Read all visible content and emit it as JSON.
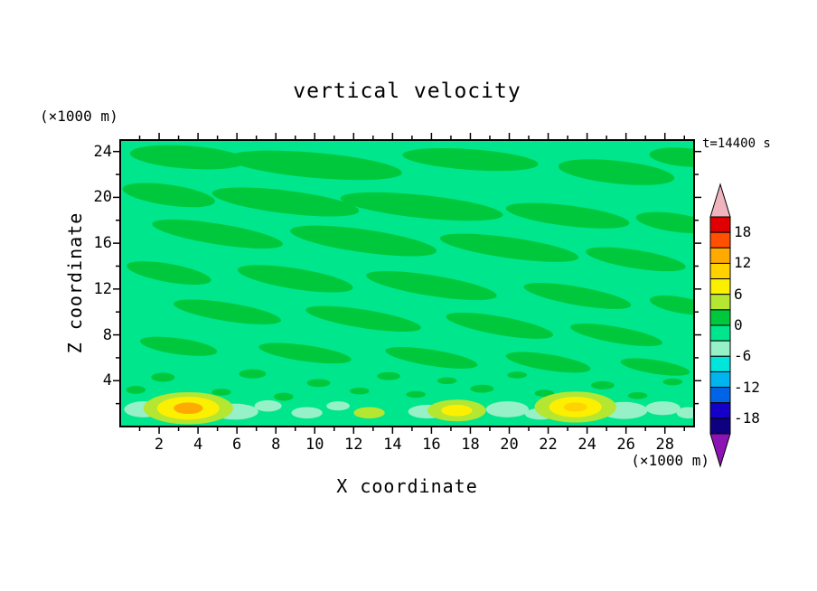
{
  "chart_data": {
    "type": "contour",
    "title": "vertical velocity",
    "timestamp": "t=14400 s",
    "x_axis": {
      "label": "X coordinate",
      "unit": "(×1000 m)",
      "range": [
        0,
        29.5
      ],
      "ticks": [
        2,
        4,
        6,
        8,
        10,
        12,
        14,
        16,
        18,
        20,
        22,
        24,
        26,
        28
      ],
      "minor_ticks": [
        1,
        3,
        5,
        7,
        9,
        11,
        13,
        15,
        17,
        19,
        21,
        23,
        25,
        27,
        29
      ]
    },
    "y_axis": {
      "label": "Z coordinate",
      "unit": "(×1000 m)",
      "range": [
        0,
        25
      ],
      "ticks": [
        4,
        8,
        12,
        16,
        20,
        24
      ],
      "minor_ticks": [
        2,
        6,
        10,
        14,
        18,
        22
      ]
    },
    "contour_interval": 3,
    "levels": [
      -21,
      -18,
      -15,
      -12,
      -9,
      -6,
      -3,
      0,
      3,
      6,
      9,
      12,
      15,
      18,
      21
    ],
    "colors_low_to_high": [
      "#8c14b4",
      "#0f0082",
      "#1400c8",
      "#0064e6",
      "#00b4f0",
      "#00e6dc",
      "#96f0c8",
      "#00e68c",
      "#00c83c",
      "#b4e632",
      "#faf000",
      "#ffd200",
      "#ffaa00",
      "#ff5000",
      "#e10000",
      "#f0b4be"
    ],
    "colorbar_labels": [
      "18",
      "12",
      "6",
      "0",
      "-6",
      "-12",
      "-18"
    ],
    "field": {
      "background_value": -1,
      "streak_value": 1.5,
      "cool_value": -4.5,
      "streaks": [
        {
          "x": 3.5,
          "z": 23.5,
          "rx": 3.0,
          "rz": 1.0,
          "rot": 4
        },
        {
          "x": 10,
          "z": 22.8,
          "rx": 4.5,
          "rz": 1.1,
          "rot": 5
        },
        {
          "x": 18,
          "z": 23.3,
          "rx": 3.5,
          "rz": 0.9,
          "rot": 4
        },
        {
          "x": 25.5,
          "z": 22.2,
          "rx": 3.0,
          "rz": 1.0,
          "rot": 6
        },
        {
          "x": 29,
          "z": 23.5,
          "rx": 1.8,
          "rz": 0.8,
          "rot": 5
        },
        {
          "x": 2.5,
          "z": 20.2,
          "rx": 2.4,
          "rz": 0.9,
          "rot": 8
        },
        {
          "x": 8.5,
          "z": 19.6,
          "rx": 3.8,
          "rz": 1.0,
          "rot": 7
        },
        {
          "x": 15.5,
          "z": 19.2,
          "rx": 4.2,
          "rz": 1.0,
          "rot": 6
        },
        {
          "x": 23,
          "z": 18.4,
          "rx": 3.2,
          "rz": 0.9,
          "rot": 7
        },
        {
          "x": 28.5,
          "z": 17.8,
          "rx": 2.0,
          "rz": 0.8,
          "rot": 8
        },
        {
          "x": 5,
          "z": 16.8,
          "rx": 3.4,
          "rz": 0.9,
          "rot": 9
        },
        {
          "x": 12.5,
          "z": 16.2,
          "rx": 3.8,
          "rz": 1.0,
          "rot": 8
        },
        {
          "x": 20,
          "z": 15.6,
          "rx": 3.6,
          "rz": 0.9,
          "rot": 8
        },
        {
          "x": 26.5,
          "z": 14.6,
          "rx": 2.6,
          "rz": 0.8,
          "rot": 9
        },
        {
          "x": 2.5,
          "z": 13.4,
          "rx": 2.2,
          "rz": 0.8,
          "rot": 10
        },
        {
          "x": 9,
          "z": 12.9,
          "rx": 3.0,
          "rz": 0.9,
          "rot": 9
        },
        {
          "x": 16,
          "z": 12.3,
          "rx": 3.4,
          "rz": 0.9,
          "rot": 9
        },
        {
          "x": 23.5,
          "z": 11.4,
          "rx": 2.8,
          "rz": 0.8,
          "rot": 10
        },
        {
          "x": 28.8,
          "z": 10.6,
          "rx": 1.6,
          "rz": 0.7,
          "rot": 10
        },
        {
          "x": 5.5,
          "z": 10.0,
          "rx": 2.8,
          "rz": 0.8,
          "rot": 9
        },
        {
          "x": 12.5,
          "z": 9.4,
          "rx": 3.0,
          "rz": 0.8,
          "rot": 9
        },
        {
          "x": 19.5,
          "z": 8.8,
          "rx": 2.8,
          "rz": 0.8,
          "rot": 10
        },
        {
          "x": 25.5,
          "z": 8.0,
          "rx": 2.4,
          "rz": 0.7,
          "rot": 10
        },
        {
          "x": 3,
          "z": 7.0,
          "rx": 2.0,
          "rz": 0.7,
          "rot": 8
        },
        {
          "x": 9.5,
          "z": 6.4,
          "rx": 2.4,
          "rz": 0.7,
          "rot": 8
        },
        {
          "x": 16,
          "z": 6.0,
          "rx": 2.4,
          "rz": 0.7,
          "rot": 9
        },
        {
          "x": 22,
          "z": 5.6,
          "rx": 2.2,
          "rz": 0.7,
          "rot": 9
        },
        {
          "x": 27.5,
          "z": 5.2,
          "rx": 1.8,
          "rz": 0.6,
          "rot": 9
        }
      ],
      "speckles": [
        {
          "x": 0.8,
          "z": 3.2,
          "rx": 0.5,
          "rz": 0.35
        },
        {
          "x": 2.2,
          "z": 4.3,
          "rx": 0.6,
          "rz": 0.4
        },
        {
          "x": 5.2,
          "z": 3.0,
          "rx": 0.5,
          "rz": 0.3
        },
        {
          "x": 6.8,
          "z": 4.6,
          "rx": 0.7,
          "rz": 0.4
        },
        {
          "x": 8.4,
          "z": 2.6,
          "rx": 0.5,
          "rz": 0.35
        },
        {
          "x": 10.2,
          "z": 3.8,
          "rx": 0.6,
          "rz": 0.35
        },
        {
          "x": 12.3,
          "z": 3.1,
          "rx": 0.5,
          "rz": 0.3
        },
        {
          "x": 13.8,
          "z": 4.4,
          "rx": 0.6,
          "rz": 0.35
        },
        {
          "x": 15.2,
          "z": 2.8,
          "rx": 0.5,
          "rz": 0.3
        },
        {
          "x": 16.8,
          "z": 4.0,
          "rx": 0.5,
          "rz": 0.3
        },
        {
          "x": 18.6,
          "z": 3.3,
          "rx": 0.6,
          "rz": 0.35
        },
        {
          "x": 20.4,
          "z": 4.5,
          "rx": 0.5,
          "rz": 0.3
        },
        {
          "x": 21.8,
          "z": 2.9,
          "rx": 0.5,
          "rz": 0.3
        },
        {
          "x": 24.8,
          "z": 3.6,
          "rx": 0.6,
          "rz": 0.35
        },
        {
          "x": 26.6,
          "z": 2.7,
          "rx": 0.5,
          "rz": 0.3
        },
        {
          "x": 28.4,
          "z": 3.9,
          "rx": 0.5,
          "rz": 0.3
        }
      ],
      "cool_patches": [
        {
          "x": 1.2,
          "z": 1.5,
          "rx": 1.0,
          "rz": 0.7
        },
        {
          "x": 5.9,
          "z": 1.3,
          "rx": 1.2,
          "rz": 0.7
        },
        {
          "x": 7.6,
          "z": 1.8,
          "rx": 0.7,
          "rz": 0.5
        },
        {
          "x": 9.6,
          "z": 1.2,
          "rx": 0.8,
          "rz": 0.5
        },
        {
          "x": 11.2,
          "z": 1.8,
          "rx": 0.6,
          "rz": 0.4
        },
        {
          "x": 15.8,
          "z": 1.3,
          "rx": 1.0,
          "rz": 0.6
        },
        {
          "x": 19.9,
          "z": 1.5,
          "rx": 1.1,
          "rz": 0.7
        },
        {
          "x": 21.6,
          "z": 1.1,
          "rx": 0.8,
          "rz": 0.5
        },
        {
          "x": 25.9,
          "z": 1.4,
          "rx": 1.2,
          "rz": 0.75
        },
        {
          "x": 27.9,
          "z": 1.6,
          "rx": 0.9,
          "rz": 0.6
        },
        {
          "x": 29.2,
          "z": 1.2,
          "rx": 0.6,
          "rz": 0.5
        }
      ],
      "warm_cells": [
        {
          "x": 3.5,
          "z": 1.6,
          "peak": 14,
          "rings": [
            {
              "value": 4.5,
              "rx": 2.3,
              "rz": 1.4
            },
            {
              "value": 7.5,
              "rx": 1.6,
              "rz": 1.0
            },
            {
              "value": 13,
              "rx": 0.75,
              "rz": 0.5
            }
          ]
        },
        {
          "x": 12.8,
          "z": 1.2,
          "peak": 5,
          "rings": [
            {
              "value": 4.5,
              "rx": 0.8,
              "rz": 0.5
            }
          ]
        },
        {
          "x": 17.3,
          "z": 1.4,
          "peak": 8,
          "rings": [
            {
              "value": 4.5,
              "rx": 1.5,
              "rz": 0.95
            },
            {
              "value": 7.5,
              "rx": 0.8,
              "rz": 0.5
            }
          ]
        },
        {
          "x": 23.4,
          "z": 1.7,
          "peak": 10,
          "rings": [
            {
              "value": 4.5,
              "rx": 2.1,
              "rz": 1.35
            },
            {
              "value": 7.5,
              "rx": 1.35,
              "rz": 0.9
            },
            {
              "value": 9.5,
              "rx": 0.6,
              "rz": 0.4
            }
          ]
        }
      ]
    }
  }
}
